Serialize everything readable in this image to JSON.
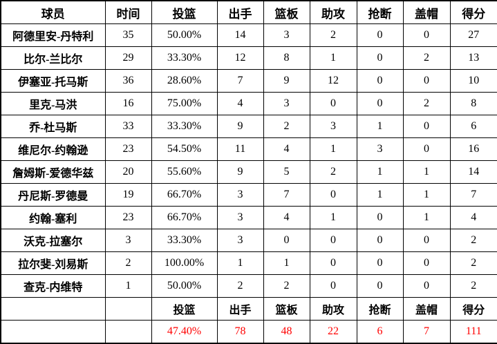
{
  "chart_data": {
    "type": "table",
    "columns": [
      "球员",
      "时间",
      "投篮",
      "出手",
      "篮板",
      "助攻",
      "抢断",
      "盖帽",
      "得分"
    ],
    "rows": [
      {
        "player": "阿德里安-丹特利",
        "stats": [
          "35",
          "50.00%",
          "14",
          "3",
          "2",
          "0",
          "0",
          "27"
        ]
      },
      {
        "player": "比尔-兰比尔",
        "stats": [
          "29",
          "33.30%",
          "12",
          "8",
          "1",
          "0",
          "2",
          "13"
        ]
      },
      {
        "player": "伊塞亚-托马斯",
        "stats": [
          "36",
          "28.60%",
          "7",
          "9",
          "12",
          "0",
          "0",
          "10"
        ]
      },
      {
        "player": "里克-马洪",
        "stats": [
          "16",
          "75.00%",
          "4",
          "3",
          "0",
          "0",
          "2",
          "8"
        ]
      },
      {
        "player": "乔-杜马斯",
        "stats": [
          "33",
          "33.30%",
          "9",
          "2",
          "3",
          "1",
          "0",
          "6"
        ]
      },
      {
        "player": "维尼尔-约翰逊",
        "stats": [
          "23",
          "54.50%",
          "11",
          "4",
          "1",
          "3",
          "0",
          "16"
        ]
      },
      {
        "player": "詹姆斯-爱德华兹",
        "stats": [
          "20",
          "55.60%",
          "9",
          "5",
          "2",
          "1",
          "1",
          "14"
        ]
      },
      {
        "player": "丹尼斯-罗德曼",
        "stats": [
          "19",
          "66.70%",
          "3",
          "7",
          "0",
          "1",
          "1",
          "7"
        ]
      },
      {
        "player": "约翰-塞利",
        "stats": [
          "23",
          "66.70%",
          "3",
          "4",
          "1",
          "0",
          "1",
          "4"
        ]
      },
      {
        "player": "沃克-拉塞尔",
        "stats": [
          "3",
          "33.30%",
          "3",
          "0",
          "0",
          "0",
          "0",
          "2"
        ]
      },
      {
        "player": "拉尔斐-刘易斯",
        "stats": [
          "2",
          "100.00%",
          "1",
          "1",
          "0",
          "0",
          "0",
          "2"
        ]
      },
      {
        "player": "查克-内维特",
        "stats": [
          "1",
          "50.00%",
          "2",
          "2",
          "0",
          "0",
          "0",
          "2"
        ]
      }
    ],
    "summary_headers": [
      "投篮",
      "出手",
      "篮板",
      "助攻",
      "抢断",
      "盖帽",
      "得分"
    ],
    "totals": [
      "47.40%",
      "78",
      "48",
      "22",
      "6",
      "7",
      "111"
    ],
    "colors": {
      "totals_text": "#ff0000",
      "text": "#000000",
      "border": "#000000",
      "background": "#ffffff"
    }
  }
}
